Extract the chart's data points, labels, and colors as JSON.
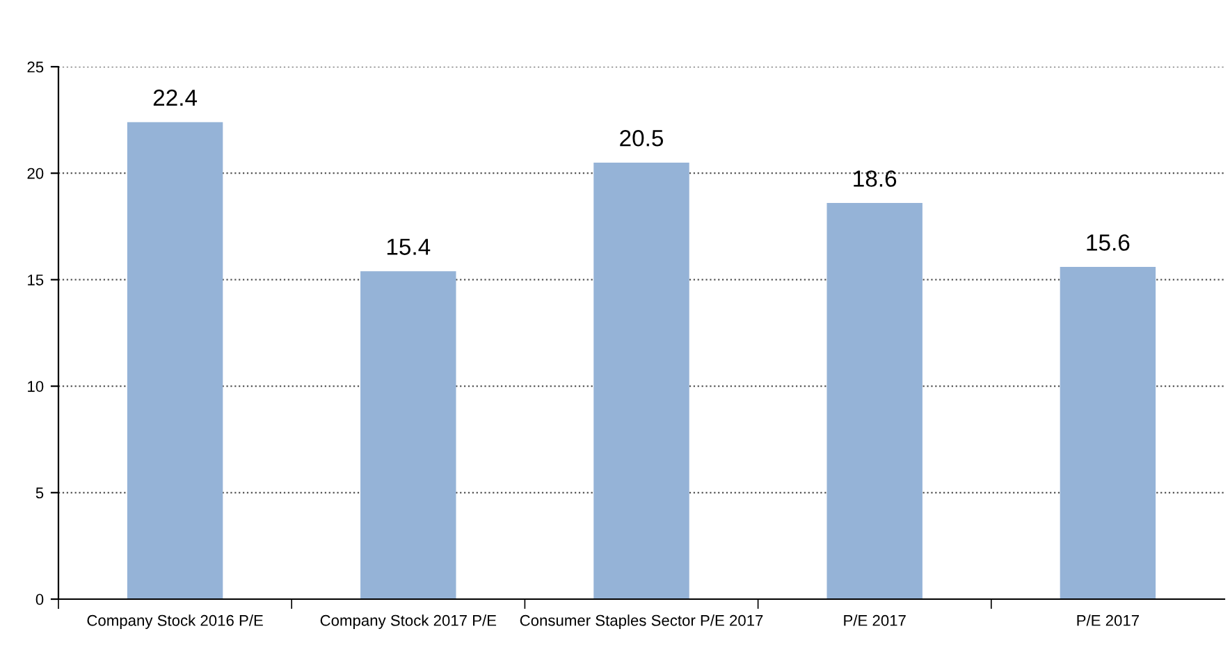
{
  "chart_data": {
    "type": "bar",
    "categories": [
      "Company Stock 2016 P/E",
      "Company Stock 2017 P/E",
      "Consumer Staples Sector P/E 2017",
      "P/E 2017",
      "P/E 2017"
    ],
    "values": [
      22.4,
      15.4,
      20.5,
      18.6,
      15.6
    ],
    "color": "#95b3d7",
    "ylim": [
      0,
      25
    ],
    "yticks": [
      0,
      5,
      10,
      15,
      20,
      25
    ],
    "grid": "y",
    "data_labels": true
  }
}
